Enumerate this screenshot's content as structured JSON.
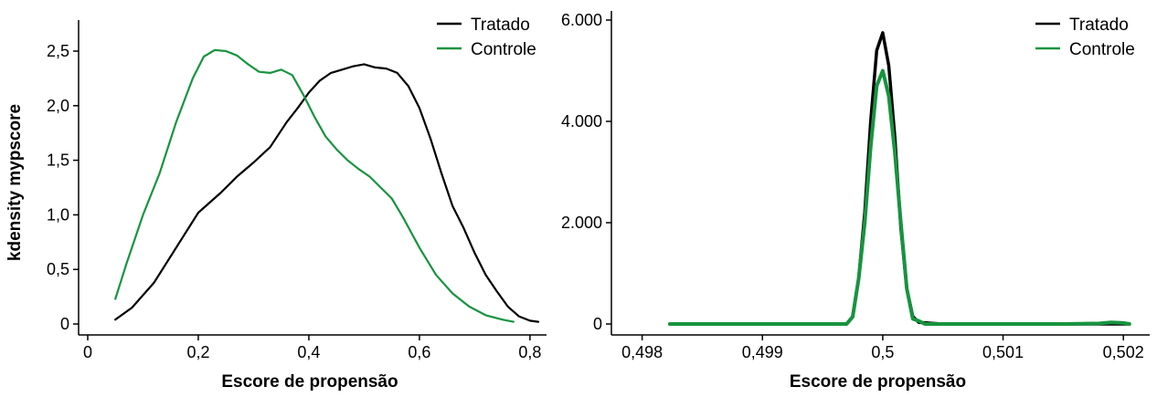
{
  "chart_data": [
    {
      "type": "line",
      "xlabel": "Escore de propensão",
      "ylabel": "kdensity mypscore",
      "xlim": [
        0,
        0.82
      ],
      "ylim": [
        0,
        2.5
      ],
      "xticks": [
        0,
        0.2,
        0.4,
        0.6,
        0.8
      ],
      "xtick_labels": [
        "0",
        "0,2",
        "0,4",
        "0,6",
        "0,8"
      ],
      "yticks": [
        0,
        0.5,
        1.0,
        1.5,
        2.0,
        2.5
      ],
      "ytick_labels": [
        "0",
        "0,5",
        "1,0",
        "1,5",
        "2,0",
        "2,5"
      ],
      "legend_position": "top-right",
      "grid": false,
      "series": [
        {
          "name": "Tratado",
          "color": "#000000",
          "x": [
            0.05,
            0.08,
            0.12,
            0.16,
            0.2,
            0.24,
            0.27,
            0.3,
            0.33,
            0.36,
            0.38,
            0.4,
            0.42,
            0.44,
            0.46,
            0.48,
            0.5,
            0.52,
            0.54,
            0.56,
            0.58,
            0.6,
            0.62,
            0.64,
            0.66,
            0.68,
            0.7,
            0.72,
            0.74,
            0.76,
            0.78,
            0.8,
            0.815
          ],
          "y": [
            0.04,
            0.15,
            0.38,
            0.7,
            1.02,
            1.2,
            1.35,
            1.48,
            1.62,
            1.85,
            1.98,
            2.12,
            2.23,
            2.3,
            2.33,
            2.36,
            2.38,
            2.35,
            2.34,
            2.3,
            2.18,
            1.98,
            1.7,
            1.38,
            1.08,
            0.88,
            0.65,
            0.45,
            0.3,
            0.16,
            0.07,
            0.03,
            0.02
          ]
        },
        {
          "name": "Controle",
          "color": "#17943f",
          "x": [
            0.05,
            0.07,
            0.1,
            0.13,
            0.16,
            0.19,
            0.21,
            0.23,
            0.25,
            0.27,
            0.29,
            0.31,
            0.33,
            0.35,
            0.37,
            0.39,
            0.41,
            0.43,
            0.45,
            0.47,
            0.49,
            0.51,
            0.53,
            0.55,
            0.57,
            0.6,
            0.63,
            0.66,
            0.69,
            0.72,
            0.75,
            0.77
          ],
          "y": [
            0.23,
            0.55,
            1.0,
            1.38,
            1.85,
            2.25,
            2.45,
            2.51,
            2.5,
            2.46,
            2.38,
            2.31,
            2.3,
            2.33,
            2.28,
            2.1,
            1.9,
            1.72,
            1.6,
            1.5,
            1.42,
            1.35,
            1.25,
            1.15,
            0.98,
            0.7,
            0.45,
            0.28,
            0.16,
            0.08,
            0.04,
            0.02
          ]
        }
      ]
    },
    {
      "type": "line",
      "xlabel": "Escore de propensão",
      "ylabel": "",
      "xlim": [
        0.49817,
        0.50212
      ],
      "ylim": [
        0,
        6000
      ],
      "xticks": [
        0.498,
        0.499,
        0.5,
        0.501,
        0.502
      ],
      "xtick_labels": [
        "0,498",
        "0,499",
        "0,5",
        "0,501",
        "0,502"
      ],
      "yticks": [
        0,
        2000,
        4000,
        6000
      ],
      "ytick_labels": [
        "0",
        "2.000",
        "4.000",
        "6.000"
      ],
      "legend_position": "top-right",
      "grid": false,
      "series": [
        {
          "name": "Tratado",
          "color": "#000000",
          "x": [
            0.49823,
            0.4995,
            0.4997,
            0.49975,
            0.4998,
            0.49985,
            0.4999,
            0.49995,
            0.5,
            0.50005,
            0.5001,
            0.50015,
            0.5002,
            0.50025,
            0.5003,
            0.5005,
            0.501,
            0.5015,
            0.50205
          ],
          "y": [
            0,
            0,
            0,
            150,
            900,
            2200,
            4000,
            5400,
            5750,
            5100,
            3700,
            1900,
            700,
            150,
            30,
            0,
            0,
            0,
            0
          ]
        },
        {
          "name": "Controle",
          "color": "#17943f",
          "x": [
            0.49823,
            0.4995,
            0.4997,
            0.49975,
            0.4998,
            0.49985,
            0.4999,
            0.49995,
            0.5,
            0.50005,
            0.5001,
            0.50015,
            0.5002,
            0.50025,
            0.5003,
            0.50035,
            0.5005,
            0.501,
            0.5015,
            0.5018,
            0.5019,
            0.502,
            0.50205
          ],
          "y": [
            0,
            0,
            0,
            140,
            900,
            2000,
            3500,
            4700,
            5000,
            4500,
            3400,
            2000,
            700,
            100,
            60,
            0,
            0,
            0,
            0,
            10,
            30,
            20,
            0
          ]
        }
      ]
    }
  ]
}
